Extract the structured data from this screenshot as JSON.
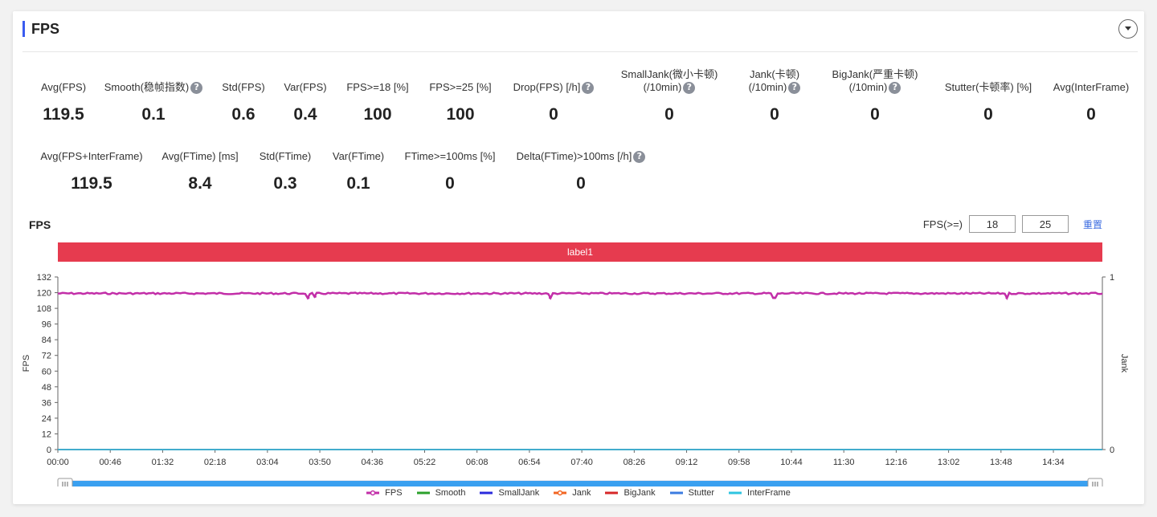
{
  "card": {
    "title": "FPS"
  },
  "metrics_row1": [
    {
      "label": "Avg(FPS)",
      "value": "119.5",
      "help": false
    },
    {
      "label": "Smooth(稳帧指数)",
      "value": "0.1",
      "help": true
    },
    {
      "label": "Std(FPS)",
      "value": "0.6",
      "help": false
    },
    {
      "label": "Var(FPS)",
      "value": "0.4",
      "help": false
    },
    {
      "label": "FPS>=18 [%]",
      "value": "100",
      "help": false
    },
    {
      "label": "FPS>=25 [%]",
      "value": "100",
      "help": false
    },
    {
      "label": "Drop(FPS) [/h]",
      "value": "0",
      "help": true
    },
    {
      "label": "SmallJank(微小卡顿)",
      "label2": "(/10min)",
      "value": "0",
      "help": true
    },
    {
      "label": "Jank(卡顿)",
      "label2": "(/10min)",
      "value": "0",
      "help": true
    },
    {
      "label": "BigJank(严重卡顿)",
      "label2": "(/10min)",
      "value": "0",
      "help": true
    },
    {
      "label": "Stutter(卡顿率) [%]",
      "value": "0",
      "help": false
    },
    {
      "label": "Avg(InterFrame)",
      "value": "0",
      "help": false
    }
  ],
  "metrics_row2": [
    {
      "label": "Avg(FPS+InterFrame)",
      "value": "119.5",
      "help": false
    },
    {
      "label": "Avg(FTime) [ms]",
      "value": "8.4",
      "help": false
    },
    {
      "label": "Std(FTime)",
      "value": "0.3",
      "help": false
    },
    {
      "label": "Var(FTime)",
      "value": "0.1",
      "help": false
    },
    {
      "label": "FTime>=100ms [%]",
      "value": "0",
      "help": false
    },
    {
      "label": "Delta(FTime)>100ms [/h]",
      "value": "0",
      "help": true
    }
  ],
  "help_glyph": "?",
  "chart_section": {
    "title": "FPS",
    "filter_label": "FPS(>=)",
    "filter_value_1": "18",
    "filter_value_2": "25",
    "reset_label": "重置"
  },
  "chart_data": {
    "type": "line",
    "band_label": "label1",
    "band_color": "#e63b4f",
    "ylabel": "FPS",
    "y2label": "Jank",
    "ylim": [
      0,
      132
    ],
    "y_ticks": [
      "0",
      "12",
      "24",
      "36",
      "48",
      "60",
      "72",
      "84",
      "96",
      "108",
      "120",
      "132"
    ],
    "y2lim": [
      0,
      1
    ],
    "y2_ticks": [
      "0",
      "1"
    ],
    "x_ticks": [
      "00:00",
      "00:46",
      "01:32",
      "02:18",
      "03:04",
      "03:50",
      "04:36",
      "05:22",
      "06:08",
      "06:54",
      "07:40",
      "08:26",
      "09:12",
      "09:58",
      "10:44",
      "11:30",
      "12:16",
      "13:02",
      "13:48",
      "14:34"
    ],
    "x_range_seconds": [
      0,
      917
    ],
    "series": [
      {
        "name": "FPS",
        "color": "#c22ea8",
        "values_summary": {
          "typical": 120,
          "min": 116,
          "max": 121
        },
        "dips": [
          {
            "x": 220,
            "y": 116
          },
          {
            "x": 226,
            "y": 117
          },
          {
            "x": 432,
            "y": 116
          },
          {
            "x": 629,
            "y": 116
          },
          {
            "x": 833,
            "y": 116
          }
        ]
      },
      {
        "name": "Smooth",
        "color": "#2ca02c",
        "value": 0
      },
      {
        "name": "SmallJank",
        "color": "#2b2bdc",
        "value": 0
      },
      {
        "name": "Jank",
        "color": "#f26522",
        "value": 0
      },
      {
        "name": "BigJank",
        "color": "#d62728",
        "value": 0
      },
      {
        "name": "Stutter",
        "color": "#3b7be0",
        "value": 0
      },
      {
        "name": "InterFrame",
        "color": "#2ec4e0",
        "value": 0
      }
    ],
    "zoom_slider": {
      "start": 0.0,
      "end": 1.0,
      "fill_color": "#3aa0f0"
    }
  }
}
